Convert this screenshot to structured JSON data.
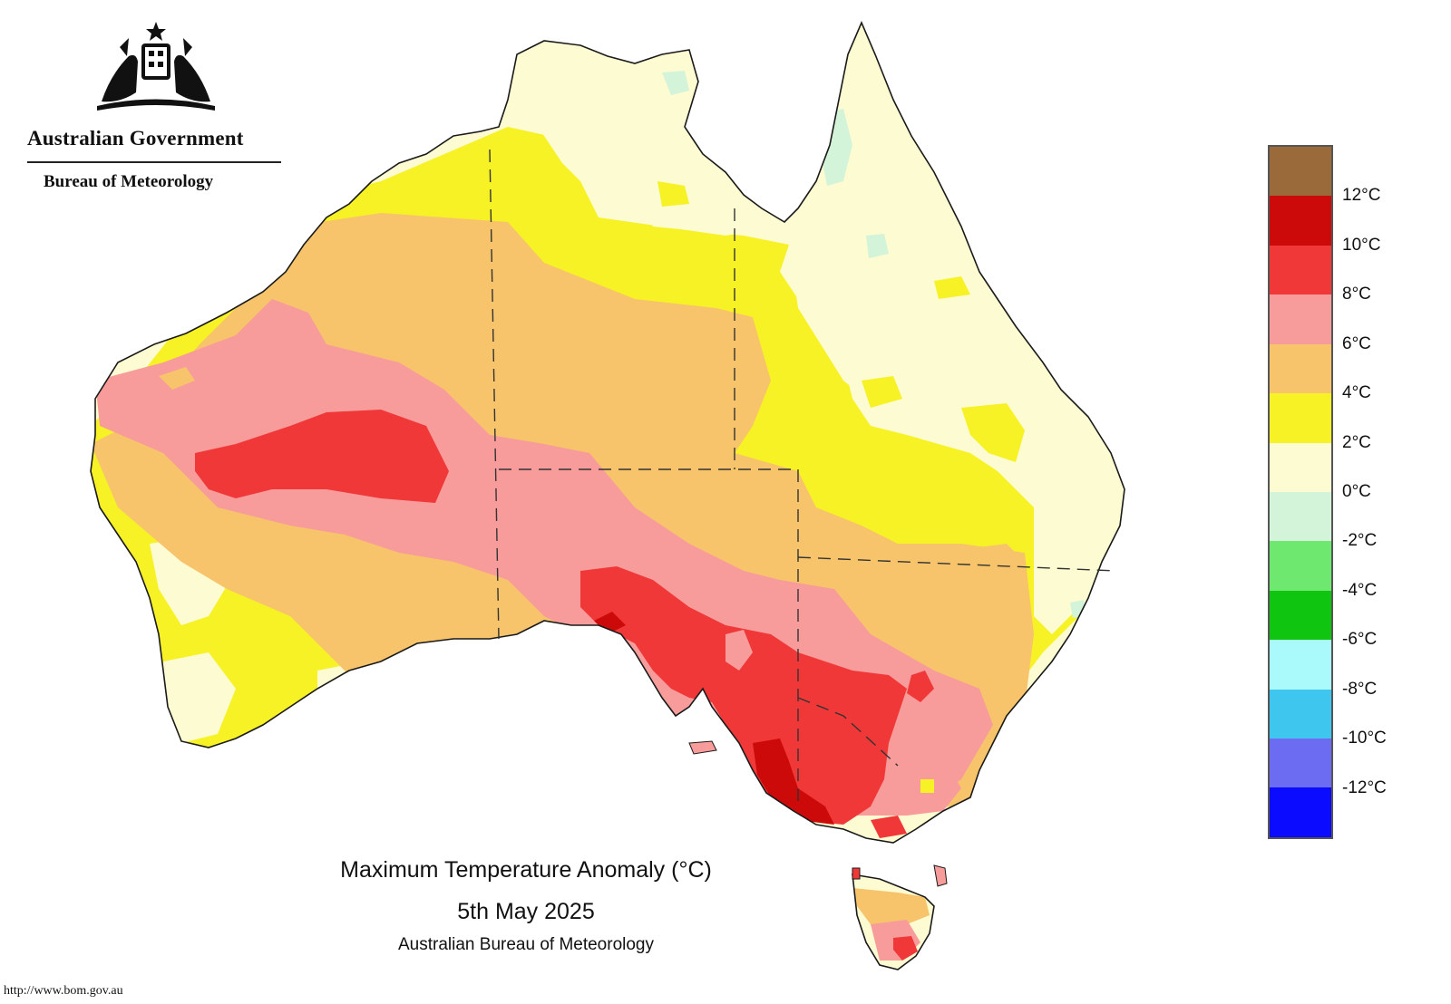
{
  "header": {
    "org_line1": "Australian Government",
    "org_line2": "Bureau of Meteorology",
    "crest_icon": "commonwealth-coat-of-arms"
  },
  "map": {
    "title": "Maximum Temperature Anomaly (°C)",
    "date": "5th May 2025",
    "credit": "Australian Bureau of Meteorology",
    "url": "http://www.bom.gov.au"
  },
  "legend": {
    "bands": [
      {
        "range": "above 12",
        "color": "#9a6a3a"
      },
      {
        "range": "10 to 12",
        "color": "#cc0a0a"
      },
      {
        "range": "8 to 10",
        "color": "#f03838"
      },
      {
        "range": "6 to 8",
        "color": "#f79b9b"
      },
      {
        "range": "4 to 6",
        "color": "#f7c46b"
      },
      {
        "range": "2 to 4",
        "color": "#f7f225"
      },
      {
        "range": "0 to 2",
        "color": "#fdfbd2"
      },
      {
        "range": "-2 to 0",
        "color": "#d3f4d9"
      },
      {
        "range": "-4 to -2",
        "color": "#6ee86e"
      },
      {
        "range": "-6 to -4",
        "color": "#0fc50f"
      },
      {
        "range": "-8 to -6",
        "color": "#aafafb"
      },
      {
        "range": "-10 to -8",
        "color": "#3fc6ee"
      },
      {
        "range": "-12 to -10",
        "color": "#6c6cf3"
      },
      {
        "range": "below -12",
        "color": "#0b0bff"
      }
    ],
    "tick_labels": [
      "12°C",
      "10°C",
      "8°C",
      "6°C",
      "4°C",
      "2°C",
      "0°C",
      "-2°C",
      "-4°C",
      "-6°C",
      "-8°C",
      "-10°C",
      "-12°C"
    ]
  },
  "colors": {
    "ocean": "#ffffff",
    "coast": "#1a1a1a",
    "border": "#333333"
  }
}
